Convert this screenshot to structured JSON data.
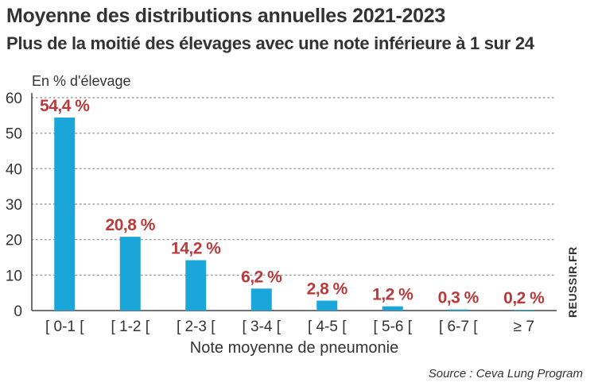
{
  "chart_data": {
    "type": "bar",
    "title": "Moyenne des distributions annuelles 2021-2023",
    "subtitle": "Plus de la moitié des élevages avec une note inférieure à 1 sur 24",
    "ylabel": "En % d'élevage",
    "xlabel": "Note moyenne de pneumonie",
    "ylim": [
      0,
      60
    ],
    "yticks": [
      0,
      10,
      20,
      30,
      40,
      50,
      60
    ],
    "categories": [
      "[ 0-1 [",
      "[ 1-2 [",
      "[ 2-3 [",
      "[ 3-4 [",
      "[ 4-5 [",
      "[ 5-6 [",
      "[ 6-7 [",
      "≥ 7"
    ],
    "values": [
      54.4,
      20.8,
      14.2,
      6.2,
      2.8,
      1.2,
      0.3,
      0.2
    ],
    "value_labels": [
      "54,4 %",
      "20,8 %",
      "14,2 %",
      "6,2 %",
      "2,8 %",
      "1,2 %",
      "0,3 %",
      "0,2 %"
    ],
    "grid": true,
    "bar_color": "#1aa6d9",
    "label_color": "#b83a3a"
  },
  "source": "Source : Ceva Lung Program",
  "brand": "REUSSIR.FR"
}
